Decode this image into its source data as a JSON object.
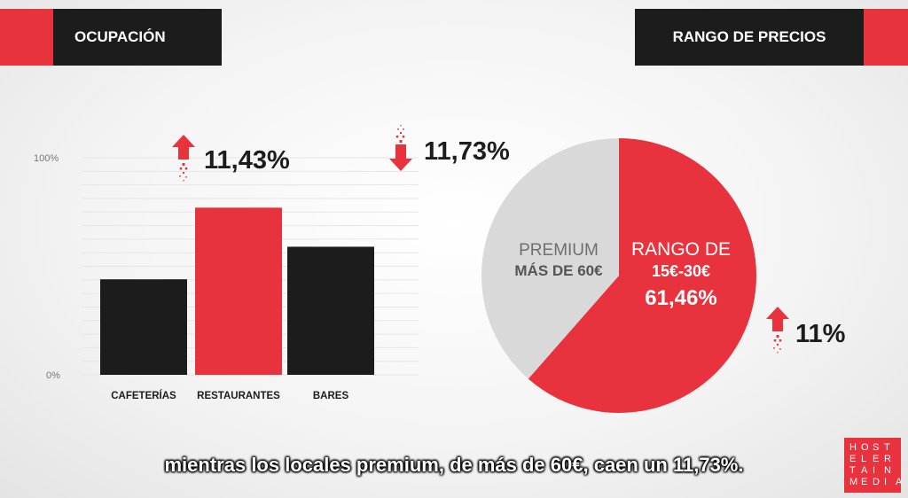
{
  "headers": {
    "left": "OCUPACIÓN",
    "right": "RANGO DE PRECIOS"
  },
  "colors": {
    "red": "#e8323d",
    "dark": "#1c1c1c",
    "grey": "#d9d9d9"
  },
  "chart_data": [
    {
      "type": "bar",
      "categories": [
        "CAFETERÍAS",
        "RESTAURANTES",
        "BARES"
      ],
      "values": [
        44,
        77,
        59
      ],
      "bar_colors": [
        "#1c1c1c",
        "#e8323d",
        "#1c1c1c"
      ],
      "ylim": [
        0,
        100
      ],
      "yticks": [
        "100%",
        "0%"
      ],
      "grid": true,
      "annotations": [
        {
          "text": "11,43%",
          "direction": "up",
          "category": "RESTAURANTES"
        },
        {
          "text": "11,73%",
          "direction": "down",
          "category": "BARES"
        }
      ]
    },
    {
      "type": "pie",
      "slices": [
        {
          "label_lines": [
            "RANGO DE",
            "15€-30€"
          ],
          "value_label": "61,46%",
          "value": 61.46,
          "color": "#e8323d"
        },
        {
          "label_lines": [
            "PREMIUM",
            "MÁS DE 60€"
          ],
          "value": 38.54,
          "color": "#d9d9d9"
        }
      ],
      "annotation": {
        "text": "11%",
        "direction": "up"
      }
    }
  ],
  "subtitle": "mientras los locales premium, de más de 60€, caen un 11,73%.",
  "logo": {
    "text": "HOSTELERTAINMEDIA",
    "rows": [
      "HOST",
      "ELER",
      "TAIN",
      "MEDIA"
    ]
  }
}
